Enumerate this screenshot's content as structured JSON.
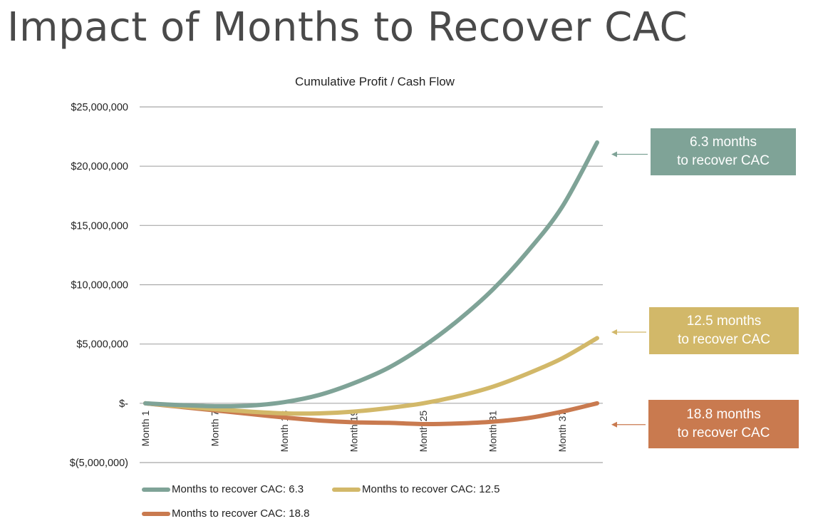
{
  "title": "Impact of Months to Recover CAC",
  "chart_data": {
    "type": "line",
    "title": "Cumulative Profit / Cash Flow",
    "xlabel": "",
    "ylabel": "",
    "ylim": [
      -5000000,
      25000000
    ],
    "y_ticks": [
      {
        "value": 25000000,
        "label": "$25,000,000"
      },
      {
        "value": 20000000,
        "label": "$20,000,000"
      },
      {
        "value": 15000000,
        "label": "$15,000,000"
      },
      {
        "value": 10000000,
        "label": "$10,000,000"
      },
      {
        "value": 5000000,
        "label": "$5,000,000"
      },
      {
        "value": 0,
        "label": "$-"
      },
      {
        "value": -5000000,
        "label": "$(5,000,000)"
      }
    ],
    "x_ticks": [
      {
        "month": 1,
        "label": "Month 1"
      },
      {
        "month": 7,
        "label": "Month 7"
      },
      {
        "month": 13,
        "label": "Month 13"
      },
      {
        "month": 19,
        "label": "Month 19"
      },
      {
        "month": 25,
        "label": "Month 25"
      },
      {
        "month": 31,
        "label": "Month 31"
      },
      {
        "month": 37,
        "label": "Month 37"
      }
    ],
    "x_range": [
      1,
      40
    ],
    "grid": true,
    "legend_position": "bottom",
    "series": [
      {
        "name": "Months to recover CAC: 6.3",
        "color": "#7fa397",
        "x": [
          1,
          4,
          7,
          10,
          13,
          16,
          19,
          22,
          25,
          28,
          31,
          34,
          37,
          40
        ],
        "values": [
          0,
          -150000,
          -250000,
          -200000,
          100000,
          700000,
          1700000,
          3000000,
          4800000,
          7000000,
          9600000,
          12800000,
          16600000,
          22000000
        ]
      },
      {
        "name": "Months to recover CAC: 12.5",
        "color": "#d2b869",
        "x": [
          1,
          4,
          7,
          10,
          13,
          16,
          19,
          22,
          25,
          28,
          31,
          34,
          37,
          40
        ],
        "values": [
          0,
          -250000,
          -500000,
          -700000,
          -850000,
          -850000,
          -700000,
          -400000,
          0,
          600000,
          1400000,
          2500000,
          3800000,
          5500000
        ]
      },
      {
        "name": "Months to recover CAC: 18.8",
        "color": "#c97a4f",
        "x": [
          1,
          4,
          7,
          10,
          13,
          16,
          19,
          22,
          25,
          28,
          31,
          34,
          37,
          40
        ],
        "values": [
          0,
          -300000,
          -600000,
          -900000,
          -1200000,
          -1450000,
          -1600000,
          -1650000,
          -1750000,
          -1700000,
          -1550000,
          -1250000,
          -700000,
          0
        ]
      }
    ]
  },
  "callouts": [
    {
      "line1": "6.3 months",
      "line2": "to recover CAC",
      "month": 40,
      "value": 21000000,
      "color": "#7fa397"
    },
    {
      "line1": "12.5 months",
      "line2": "to recover CAC",
      "month": 40,
      "value": 6000000,
      "color": "#d2b869"
    },
    {
      "line1": "18.8 months",
      "line2": "to recover CAC",
      "month": 40,
      "value": -1800000,
      "color": "#c97a4f"
    }
  ],
  "colors": {
    "grid": "#a8a8a8",
    "title_text": "#4a4a4a",
    "axis_text": "#222222"
  }
}
